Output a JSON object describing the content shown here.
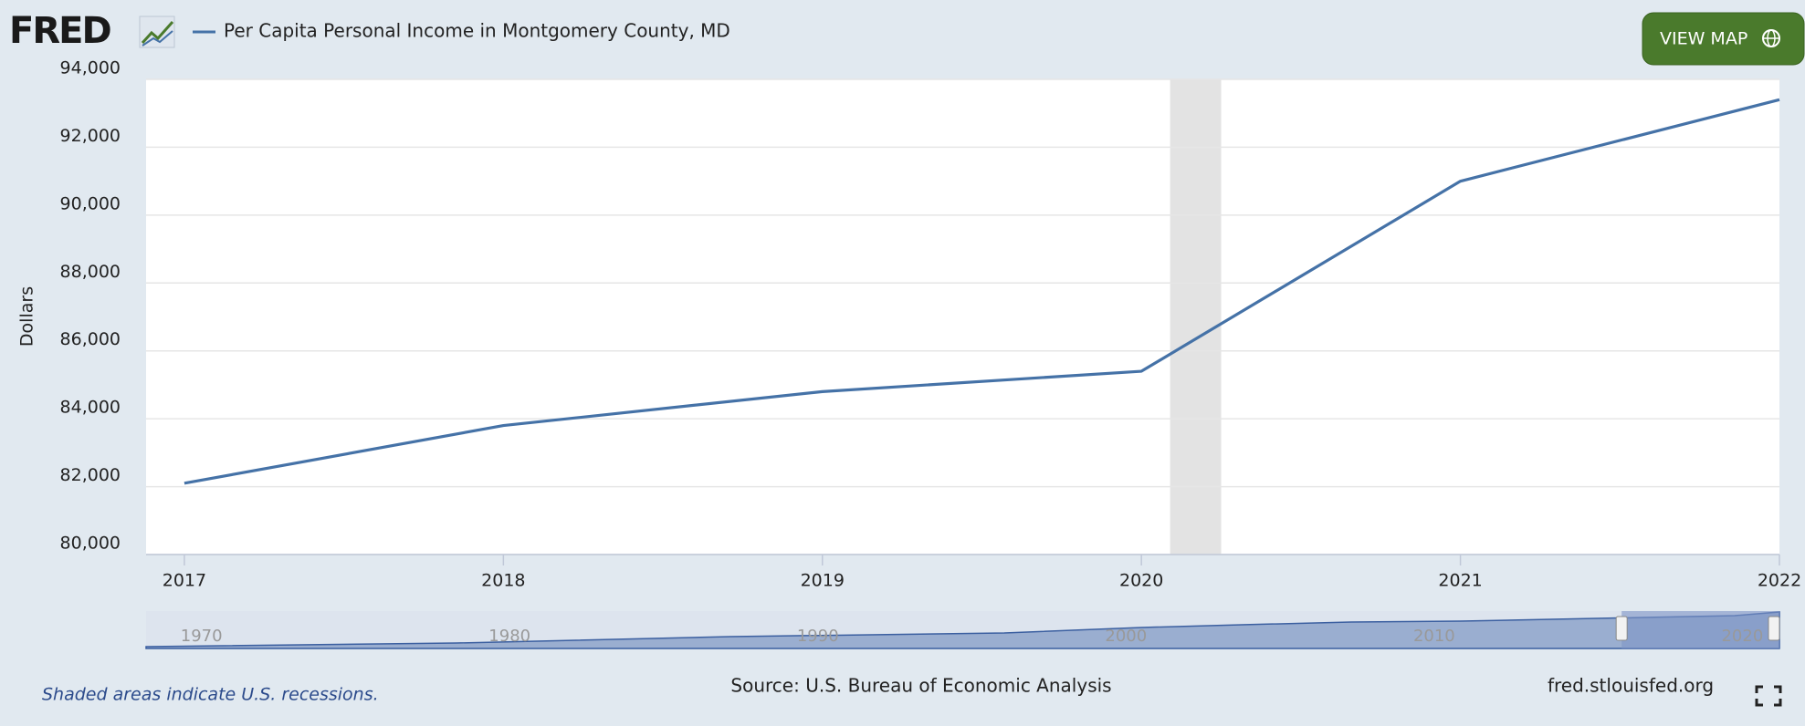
{
  "page": {
    "logo": "FRED",
    "button": "VIEW MAP",
    "note": "Shaded areas indicate U.S. recessions.",
    "source": "Source: U.S. Bureau of Economic Analysis",
    "url": "fred.stlouisfed.org"
  },
  "chart_data": {
    "type": "line",
    "y_label": "Dollars",
    "x": [
      2017,
      2018,
      2019,
      2020,
      2021,
      2022
    ],
    "series": [
      {
        "name": "Per Capita Personal Income in Montgomery County, MD",
        "color": "#4572a7",
        "values": [
          82100,
          83800,
          84800,
          85400,
          91000,
          93400
        ]
      }
    ],
    "xlim": [
      2016.88,
      2022
    ],
    "xticks": [
      2017,
      2018,
      2019,
      2020,
      2021,
      2022
    ],
    "ylim": [
      80000,
      94000
    ],
    "yticks": [
      {
        "value": 80000,
        "label": "80,000"
      },
      {
        "value": 82000,
        "label": "82,000"
      },
      {
        "value": 84000,
        "label": "84,000"
      },
      {
        "value": 86000,
        "label": "86,000"
      },
      {
        "value": 88000,
        "label": "88,000"
      },
      {
        "value": 90000,
        "label": "90,000"
      },
      {
        "value": 92000,
        "label": "92,000"
      },
      {
        "value": 94000,
        "label": "94,000"
      }
    ],
    "grid": true,
    "recessions": [
      {
        "start": 2020.09,
        "end": 2020.25
      }
    ],
    "navigator": {
      "xlim": [
        1969,
        2022
      ],
      "xticks": [
        1970,
        1980,
        1990,
        2000,
        2010,
        2020
      ],
      "selected": [
        2016.88,
        2022
      ]
    }
  }
}
